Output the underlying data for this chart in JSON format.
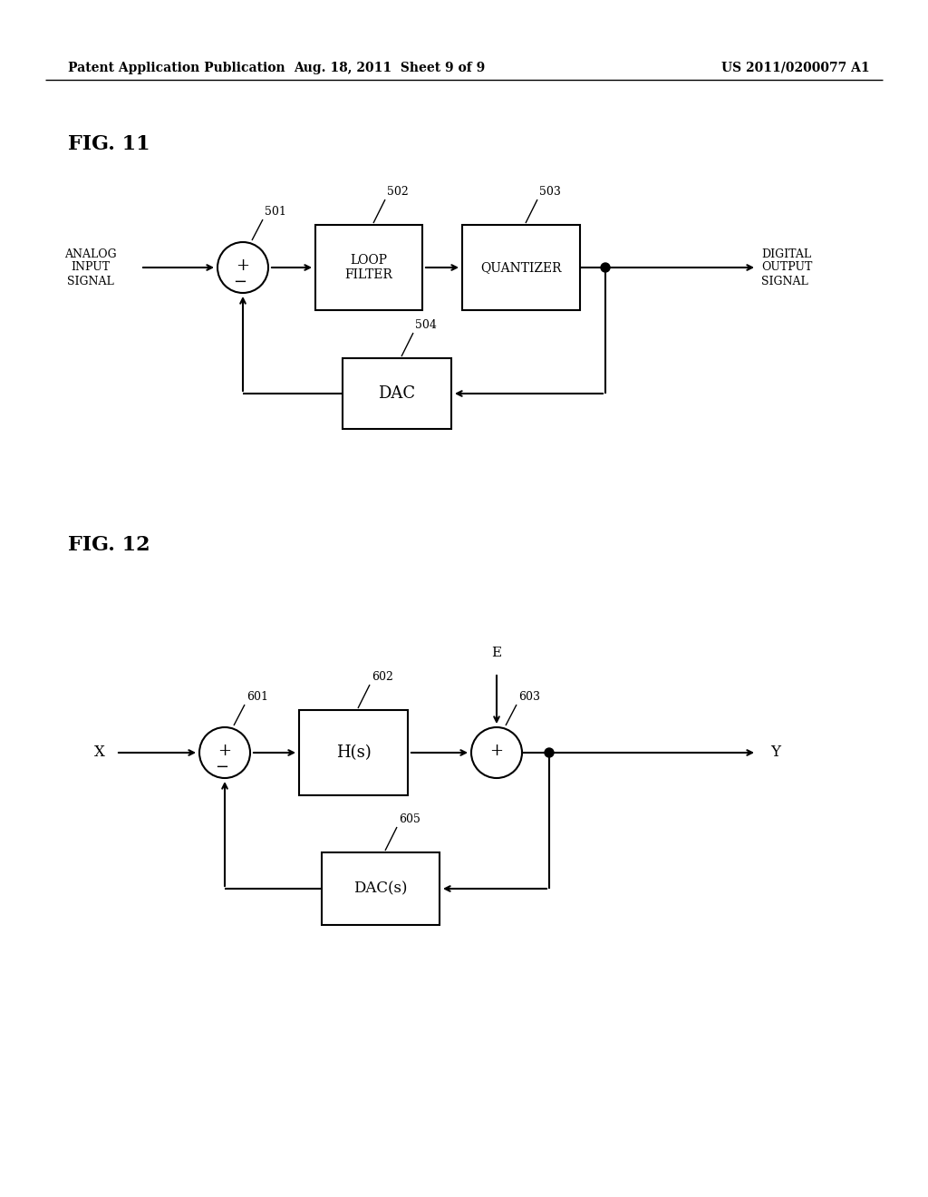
{
  "bg_color": "#ffffff",
  "line_color": "#000000",
  "header_left": "Patent Application Publication",
  "header_center": "Aug. 18, 2011  Sheet 9 of 9",
  "header_right": "US 2011/0200077 A1",
  "fig11_label": "FIG. 11",
  "fig12_label": "FIG. 12"
}
